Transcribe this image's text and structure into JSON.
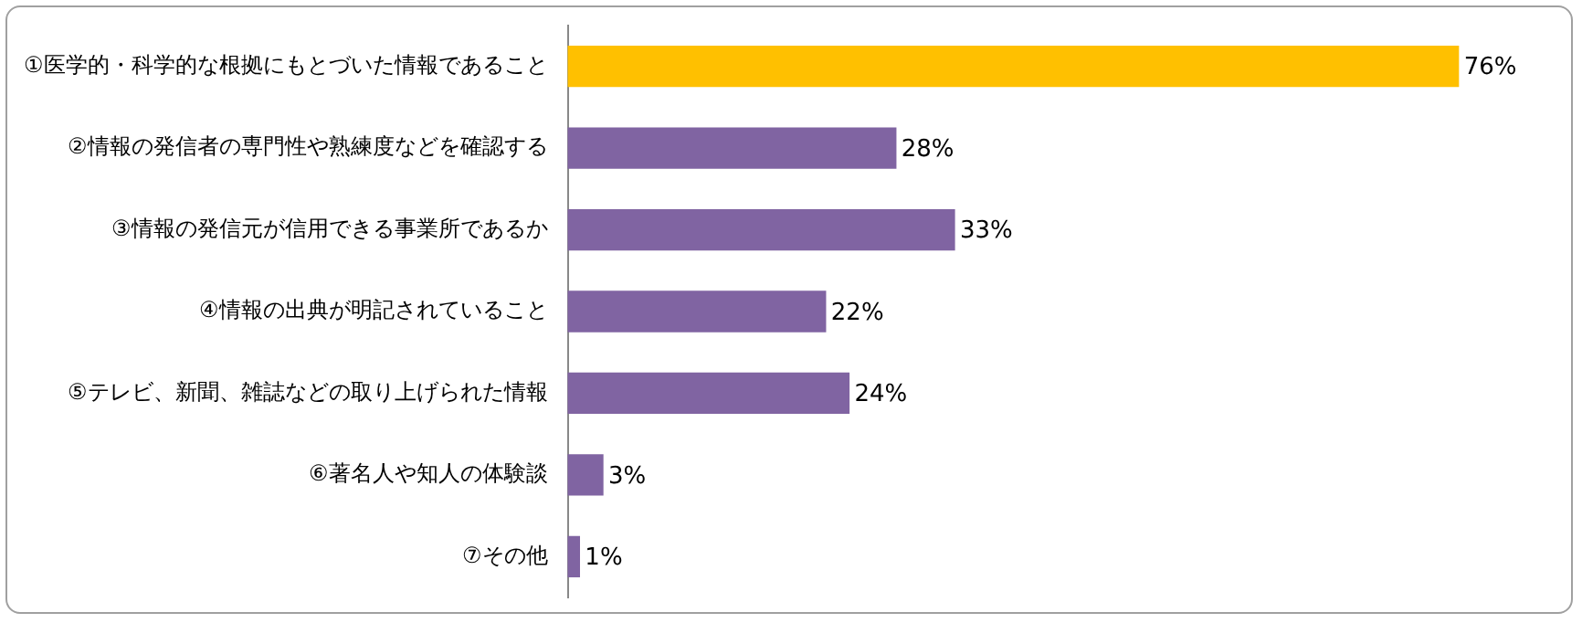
{
  "chart_data": {
    "type": "bar",
    "orientation": "horizontal",
    "categories": [
      "①医学的・科学的な根拠にもとづいた情報であること",
      "②情報の発信者の専門性や熟練度などを確認する",
      "③情報の発信元が信用できる事業所であるか",
      "④情報の出典が明記されていること",
      "⑤テレビ、新聞、雑誌などの取り上げられた情報",
      "⑥著名人や知人の体験談",
      "⑦その他"
    ],
    "values": [
      76,
      28,
      33,
      22,
      24,
      3,
      1
    ],
    "colors": [
      "#ffc000",
      "#8064a2",
      "#8064a2",
      "#8064a2",
      "#8064a2",
      "#8064a2",
      "#8064a2"
    ],
    "value_labels": [
      "76%",
      "28%",
      "33%",
      "22%",
      "24%",
      "3%",
      "1%"
    ],
    "legend": false
  }
}
